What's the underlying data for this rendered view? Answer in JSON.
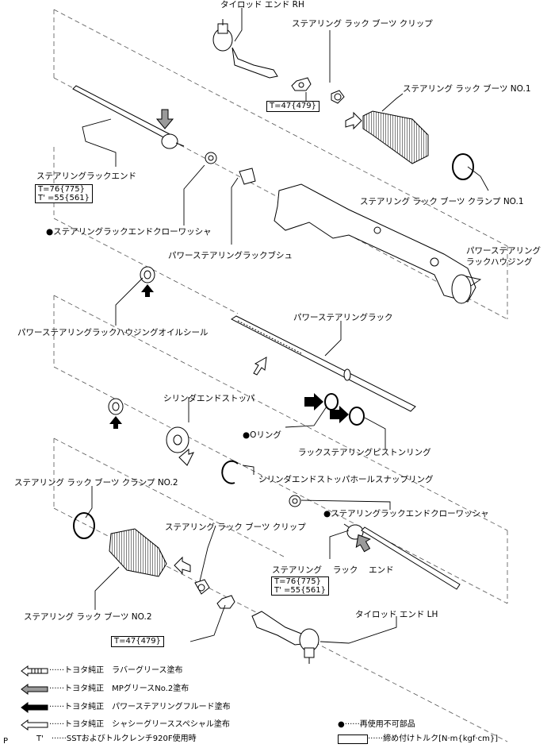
{
  "labels": {
    "tie_rod_rh": "タイロッド エンド RH",
    "boot_clip_top": "ステアリング ラック ブーツ クリップ",
    "boot_no1": "ステアリング ラック ブーツ NO.1",
    "rack_end_top": "ステアリングラックエンド",
    "clamp_no1": "ステアリング ラック ブーツ クランプ NO.1",
    "claw_washer_top": "●ステアリングラックエンドクローワッシャ",
    "rack_bush": "パワーステアリングラックブシュ",
    "housing_1": "パワーステアリング",
    "housing_2": "ラックハウジング",
    "oil_seal": "パワーステアリングラックハウジングオイルシール",
    "power_rack": "パワーステアリングラック",
    "cyl_stopper": "シリンダエンドストッパ",
    "o_ring": "●Oリング",
    "piston_ring": "ラックステアリングピストンリング",
    "snap_ring": "シリンダエンドストッパホールスナップリング",
    "clamp_no2": "ステアリング ラック ブーツ クランプ NO.2",
    "claw_washer_bottom": "●ステアリングラックエンドクローワッシャ",
    "boot_clip_bottom": "ステアリング ラック ブーツ クリップ",
    "rack_end_bottom": "ステアリング　 ラック　 エンド",
    "boot_no2": "ステアリング ラック ブーツ NO.2",
    "tie_rod_lh": "タイロッド エンド LH"
  },
  "torque": {
    "nut_top": "T=47{479}",
    "rack_end_top_1": "T=76{775}",
    "rack_end_top_2": "T' =55{561}",
    "rack_end_bottom_1": "T=76{775}",
    "rack_end_bottom_2": "T' =55{561}",
    "nut_bottom": "T=47{479}"
  },
  "legend": {
    "rubber_grease": "······トヨタ純正　ラバーグリース塗布",
    "mp_grease": "······トヨタ純正　MPグリースNo.2塗布",
    "psf": "······トヨタ純正　パワーステアリングフルード塗布",
    "chassis_grease": "······トヨタ純正　シャシーグリーススペシャル塗布",
    "sst": "T'　······SSTおよびトルクレンチ920F使用時",
    "non_reusable": "●······再使用不可部品",
    "torque_spec": "······締め付けトルク[N·m{kgf·cm}]"
  },
  "corner_mark": "P",
  "colors": {
    "line": "#000000",
    "gray_fill": "#9a9a9a",
    "light_fill": "#e8e8e8"
  }
}
